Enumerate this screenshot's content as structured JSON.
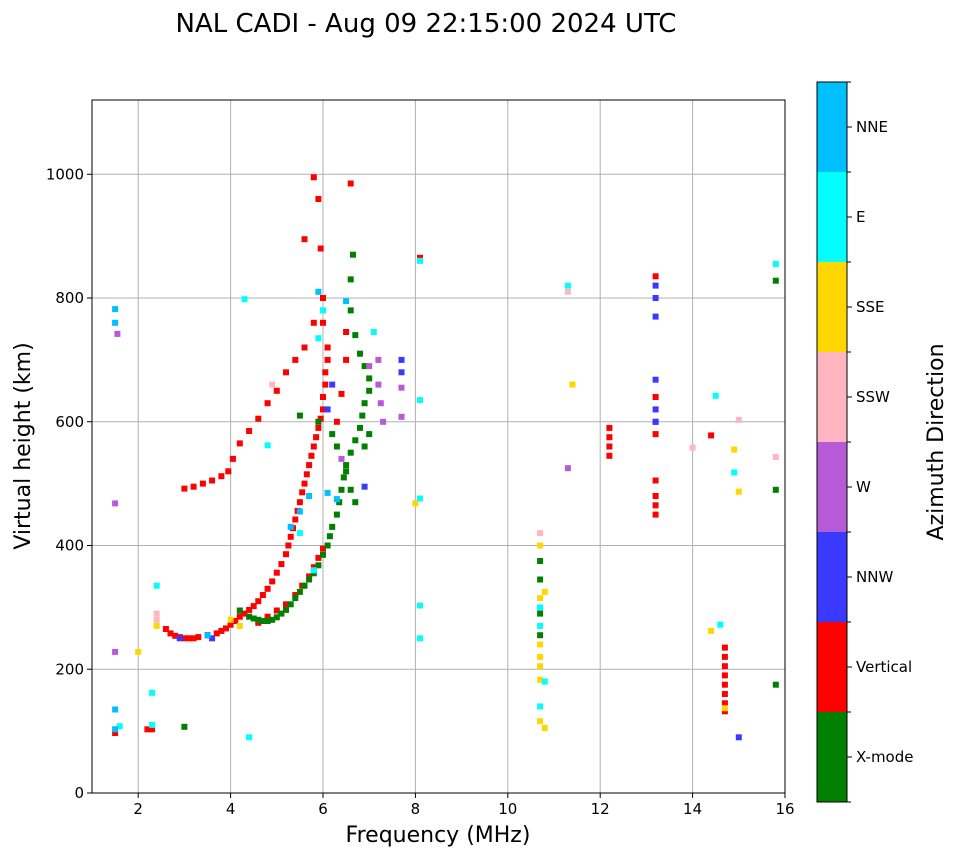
{
  "chart_data": {
    "type": "scatter",
    "title": "NAL CADI - Aug 09 22:15:00 2024 UTC",
    "xlabel": "Frequency (MHz)",
    "ylabel": "Virtual height (km)",
    "xlim": [
      1,
      16
    ],
    "ylim": [
      0,
      1120
    ],
    "xticks": [
      2,
      4,
      6,
      8,
      10,
      12,
      14,
      16
    ],
    "yticks": [
      0,
      200,
      400,
      600,
      800,
      1000
    ],
    "grid": true,
    "colorbar": {
      "title": "Azimuth Direction",
      "categories": [
        {
          "name": "X-mode",
          "color": "#008000"
        },
        {
          "name": "Vertical",
          "color": "#ff0000"
        },
        {
          "name": "NNW",
          "color": "#3a3aff"
        },
        {
          "name": "W",
          "color": "#b65ad6"
        },
        {
          "name": "SSW",
          "color": "#ffb6c1"
        },
        {
          "name": "SSE",
          "color": "#ffd700"
        },
        {
          "name": "E",
          "color": "#00ffff"
        },
        {
          "name": "NNE",
          "color": "#00bfff"
        }
      ]
    },
    "series": [
      {
        "name": "Vertical",
        "points": [
          [
            2.6,
            265
          ],
          [
            2.7,
            258
          ],
          [
            2.8,
            254
          ],
          [
            2.9,
            252
          ],
          [
            3.0,
            250
          ],
          [
            3.1,
            250
          ],
          [
            3.2,
            250
          ],
          [
            3.3,
            252
          ],
          [
            3.5,
            255
          ],
          [
            3.7,
            258
          ],
          [
            3.8,
            262
          ],
          [
            3.9,
            266
          ],
          [
            4.0,
            272
          ],
          [
            4.1,
            278
          ],
          [
            4.2,
            285
          ],
          [
            4.3,
            290
          ],
          [
            4.4,
            296
          ],
          [
            4.5,
            302
          ],
          [
            4.6,
            310
          ],
          [
            4.7,
            320
          ],
          [
            4.8,
            330
          ],
          [
            4.9,
            342
          ],
          [
            5.0,
            356
          ],
          [
            5.1,
            370
          ],
          [
            5.2,
            386
          ],
          [
            5.25,
            400
          ],
          [
            5.3,
            414
          ],
          [
            5.35,
            428
          ],
          [
            5.4,
            442
          ],
          [
            5.45,
            456
          ],
          [
            5.5,
            470
          ],
          [
            5.55,
            486
          ],
          [
            5.6,
            500
          ],
          [
            5.65,
            515
          ],
          [
            5.7,
            530
          ],
          [
            5.75,
            545
          ],
          [
            5.8,
            560
          ],
          [
            5.85,
            575
          ],
          [
            5.9,
            590
          ],
          [
            5.95,
            605
          ],
          [
            6.0,
            620
          ],
          [
            6.0,
            640
          ],
          [
            6.05,
            660
          ],
          [
            6.05,
            680
          ],
          [
            6.1,
            700
          ],
          [
            6.1,
            720
          ],
          [
            6.0,
            760
          ],
          [
            6.0,
            800
          ],
          [
            5.95,
            880
          ],
          [
            5.9,
            960
          ],
          [
            5.8,
            995
          ],
          [
            3.0,
            492
          ],
          [
            3.2,
            495
          ],
          [
            3.4,
            500
          ],
          [
            3.6,
            505
          ],
          [
            3.8,
            512
          ],
          [
            3.95,
            520
          ],
          [
            4.05,
            540
          ],
          [
            4.2,
            565
          ],
          [
            4.4,
            585
          ],
          [
            4.6,
            605
          ],
          [
            4.8,
            630
          ],
          [
            5.0,
            650
          ],
          [
            5.2,
            680
          ],
          [
            5.4,
            700
          ],
          [
            5.6,
            720
          ],
          [
            5.8,
            760
          ],
          [
            6.5,
            745
          ],
          [
            6.5,
            700
          ],
          [
            6.4,
            645
          ],
          [
            6.3,
            600
          ],
          [
            6.6,
            985
          ],
          [
            5.6,
            895
          ],
          [
            4.6,
            275
          ],
          [
            4.8,
            285
          ],
          [
            5.0,
            295
          ],
          [
            5.2,
            305
          ],
          [
            5.4,
            320
          ],
          [
            5.55,
            335
          ],
          [
            5.7,
            350
          ],
          [
            5.8,
            365
          ],
          [
            5.9,
            380
          ],
          [
            6.0,
            395
          ],
          [
            12.2,
            590
          ],
          [
            12.2,
            575
          ],
          [
            12.2,
            560
          ],
          [
            12.2,
            545
          ],
          [
            13.2,
            835
          ],
          [
            13.2,
            640
          ],
          [
            13.2,
            600
          ],
          [
            13.2,
            580
          ],
          [
            13.2,
            505
          ],
          [
            13.2,
            480
          ],
          [
            13.2,
            465
          ],
          [
            13.2,
            450
          ],
          [
            14.7,
            235
          ],
          [
            14.7,
            220
          ],
          [
            14.7,
            205
          ],
          [
            14.7,
            190
          ],
          [
            14.7,
            175
          ],
          [
            14.7,
            160
          ],
          [
            14.7,
            145
          ],
          [
            14.7,
            132
          ],
          [
            14.4,
            578
          ],
          [
            8.1,
            865
          ],
          [
            1.5,
            97
          ],
          [
            2.2,
            103
          ],
          [
            2.3,
            103
          ]
        ]
      },
      {
        "name": "X-mode",
        "points": [
          [
            4.4,
            285
          ],
          [
            4.5,
            282
          ],
          [
            4.6,
            280
          ],
          [
            4.7,
            278
          ],
          [
            4.8,
            278
          ],
          [
            4.9,
            280
          ],
          [
            5.0,
            284
          ],
          [
            5.1,
            290
          ],
          [
            5.2,
            296
          ],
          [
            5.3,
            305
          ],
          [
            5.4,
            315
          ],
          [
            5.5,
            325
          ],
          [
            5.6,
            335
          ],
          [
            5.7,
            345
          ],
          [
            5.8,
            355
          ],
          [
            5.9,
            368
          ],
          [
            6.0,
            385
          ],
          [
            6.1,
            400
          ],
          [
            6.15,
            415
          ],
          [
            6.2,
            430
          ],
          [
            6.3,
            450
          ],
          [
            6.35,
            470
          ],
          [
            6.4,
            490
          ],
          [
            6.45,
            510
          ],
          [
            6.5,
            530
          ],
          [
            6.6,
            550
          ],
          [
            6.7,
            570
          ],
          [
            6.8,
            590
          ],
          [
            6.85,
            610
          ],
          [
            6.9,
            630
          ],
          [
            7.0,
            650
          ],
          [
            7.0,
            670
          ],
          [
            6.9,
            690
          ],
          [
            6.8,
            710
          ],
          [
            6.7,
            740
          ],
          [
            6.6,
            780
          ],
          [
            6.6,
            830
          ],
          [
            6.65,
            870
          ],
          [
            5.5,
            610
          ],
          [
            5.9,
            600
          ],
          [
            6.2,
            580
          ],
          [
            6.3,
            560
          ],
          [
            6.5,
            520
          ],
          [
            6.6,
            490
          ],
          [
            6.7,
            470
          ],
          [
            6.9,
            560
          ],
          [
            7.0,
            580
          ],
          [
            10.7,
            375
          ],
          [
            10.7,
            345
          ],
          [
            10.7,
            290
          ],
          [
            10.7,
            255
          ],
          [
            15.8,
            828
          ],
          [
            15.8,
            490
          ],
          [
            15.8,
            175
          ],
          [
            4.2,
            295
          ],
          [
            3.0,
            107
          ]
        ]
      },
      {
        "name": "NNW",
        "points": [
          [
            13.2,
            820
          ],
          [
            13.2,
            800
          ],
          [
            13.2,
            770
          ],
          [
            13.2,
            668
          ],
          [
            13.2,
            620
          ],
          [
            13.2,
            600
          ],
          [
            7.7,
            700
          ],
          [
            7.7,
            680
          ],
          [
            3.5,
            255
          ],
          [
            3.6,
            250
          ],
          [
            2.9,
            250
          ],
          [
            6.1,
            620
          ],
          [
            6.2,
            660
          ],
          [
            6.9,
            495
          ],
          [
            15.0,
            90
          ]
        ]
      },
      {
        "name": "W",
        "points": [
          [
            7.2,
            700
          ],
          [
            7.2,
            660
          ],
          [
            7.25,
            630
          ],
          [
            7.3,
            600
          ],
          [
            7.0,
            690
          ],
          [
            7.7,
            655
          ],
          [
            7.7,
            608
          ],
          [
            1.5,
            228
          ],
          [
            1.55,
            742
          ],
          [
            11.3,
            525
          ],
          [
            6.4,
            540
          ],
          [
            1.5,
            468
          ]
        ]
      },
      {
        "name": "SSW",
        "points": [
          [
            10.7,
            420
          ],
          [
            2.4,
            290
          ],
          [
            2.4,
            280
          ],
          [
            15.0,
            603
          ],
          [
            15.8,
            543
          ],
          [
            11.3,
            810
          ],
          [
            14.0,
            558
          ],
          [
            4.9,
            660
          ]
        ]
      },
      {
        "name": "SSE",
        "points": [
          [
            10.7,
            400
          ],
          [
            10.7,
            315
          ],
          [
            10.7,
            240
          ],
          [
            10.7,
            220
          ],
          [
            10.7,
            205
          ],
          [
            10.7,
            183
          ],
          [
            10.7,
            116
          ],
          [
            10.8,
            105
          ],
          [
            10.8,
            325
          ],
          [
            8.0,
            468
          ],
          [
            14.9,
            555
          ],
          [
            15.0,
            487
          ],
          [
            14.7,
            137
          ],
          [
            14.4,
            262
          ],
          [
            11.4,
            660
          ],
          [
            4.0,
            280
          ],
          [
            4.2,
            270
          ],
          [
            2.4,
            270
          ],
          [
            2.0,
            228
          ]
        ]
      },
      {
        "name": "E",
        "points": [
          [
            10.7,
            270
          ],
          [
            10.7,
            300
          ],
          [
            10.7,
            140
          ],
          [
            10.8,
            180
          ],
          [
            14.6,
            272
          ],
          [
            14.9,
            518
          ],
          [
            14.5,
            642
          ],
          [
            15.8,
            855
          ],
          [
            11.3,
            820
          ],
          [
            8.1,
            860
          ],
          [
            8.1,
            635
          ],
          [
            8.1,
            476
          ],
          [
            8.1,
            303
          ],
          [
            8.1,
            250
          ],
          [
            4.4,
            90
          ],
          [
            2.3,
            110
          ],
          [
            1.6,
            108
          ],
          [
            5.9,
            735
          ],
          [
            6.0,
            780
          ],
          [
            5.5,
            420
          ],
          [
            5.8,
            360
          ],
          [
            4.3,
            798
          ],
          [
            4.8,
            562
          ],
          [
            2.4,
            335
          ],
          [
            2.3,
            162
          ],
          [
            7.1,
            745
          ]
        ]
      },
      {
        "name": "NNE",
        "points": [
          [
            6.5,
            795
          ],
          [
            1.5,
            760
          ],
          [
            1.5,
            782
          ],
          [
            1.5,
            135
          ],
          [
            5.3,
            430
          ],
          [
            5.5,
            455
          ],
          [
            5.7,
            480
          ],
          [
            6.1,
            485
          ],
          [
            6.3,
            475
          ],
          [
            3.5,
            255
          ],
          [
            1.5,
            103
          ],
          [
            5.9,
            810
          ]
        ]
      }
    ]
  }
}
